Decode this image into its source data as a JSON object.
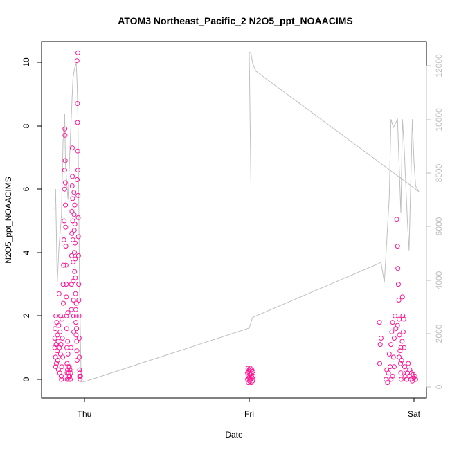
{
  "chart_data": {
    "type": "scatter",
    "title": "ATOM3 Northeast_Pacific_2 N2O5_ppt_NOAACIMS",
    "xlabel": "Date",
    "ylabel": "N2O5_ppt_NOAACIMS",
    "x_ticks": [
      "Thu",
      "Fri",
      "Sat"
    ],
    "y_ticks": [
      "0",
      "2",
      "4",
      "6",
      "8",
      "10"
    ],
    "y2_ticks": [
      "0",
      "2000",
      "4000",
      "6000",
      "8000",
      "10000",
      "12000"
    ],
    "ylim": [
      -0.6,
      10.6
    ],
    "y2lim": [
      -200,
      12500
    ],
    "grid": false,
    "legend": "none",
    "colors": {
      "points": "#ff1493",
      "line": "#bfbfbf",
      "axis": "#000000",
      "right_axis": "#bfbfbf"
    },
    "series": [
      {
        "type": "scatter",
        "axis": "left",
        "points": [
          [
            -0.18,
            1.0
          ],
          [
            -0.18,
            1.3
          ],
          [
            -0.178,
            1.6
          ],
          [
            -0.176,
            0.7
          ],
          [
            -0.175,
            0.4
          ],
          [
            -0.174,
            2.0
          ],
          [
            -0.172,
            1.1
          ],
          [
            -0.17,
            0.5
          ],
          [
            -0.168,
            1.8
          ],
          [
            -0.166,
            0.9
          ],
          [
            -0.164,
            1.4
          ],
          [
            -0.162,
            0.6
          ],
          [
            -0.16,
            1.2
          ],
          [
            -0.158,
            0.3
          ],
          [
            -0.156,
            1.7
          ],
          [
            -0.154,
            2.7
          ],
          [
            -0.152,
            1.0
          ],
          [
            -0.15,
            0.2
          ],
          [
            -0.148,
            1.5
          ],
          [
            -0.146,
            0.8
          ],
          [
            -0.145,
            2.0
          ],
          [
            -0.143,
            1.1
          ],
          [
            -0.141,
            0.1
          ],
          [
            -0.14,
            0.0
          ],
          [
            -0.138,
            0.4
          ],
          [
            -0.136,
            1.9
          ],
          [
            -0.134,
            1.3
          ],
          [
            -0.132,
            0.7
          ],
          [
            -0.13,
            3.0
          ],
          [
            -0.128,
            2.4
          ],
          [
            -0.127,
            3.6
          ],
          [
            -0.125,
            4.4
          ],
          [
            -0.123,
            5.0
          ],
          [
            -0.121,
            6.0
          ],
          [
            -0.12,
            6.6
          ],
          [
            -0.119,
            7.9
          ],
          [
            -0.118,
            7.7
          ],
          [
            -0.117,
            6.9
          ],
          [
            -0.116,
            6.2
          ],
          [
            -0.115,
            5.5
          ],
          [
            -0.114,
            4.8
          ],
          [
            -0.113,
            4.2
          ],
          [
            -0.112,
            3.6
          ],
          [
            -0.111,
            3.0
          ],
          [
            -0.11,
            2.6
          ],
          [
            -0.109,
            2.0
          ],
          [
            -0.108,
            1.6
          ],
          [
            -0.107,
            1.0
          ],
          [
            -0.106,
            0.5
          ],
          [
            -0.105,
            0.2
          ],
          [
            -0.104,
            0.0
          ],
          [
            -0.103,
            0.3
          ],
          [
            -0.102,
            1.2
          ],
          [
            -0.101,
            2.1
          ],
          [
            -0.1,
            0.8
          ],
          [
            -0.099,
            0.4
          ],
          [
            -0.098,
            0.1
          ],
          [
            -0.096,
            0.2
          ],
          [
            -0.094,
            0.0
          ],
          [
            -0.092,
            0.4
          ],
          [
            -0.09,
            0.1
          ],
          [
            -0.088,
            0.3
          ],
          [
            -0.086,
            0.0
          ],
          [
            -0.084,
            0.2
          ],
          [
            -0.082,
            1.0
          ],
          [
            -0.08,
            2.2
          ],
          [
            -0.079,
            3.0
          ],
          [
            -0.078,
            3.9
          ],
          [
            -0.077,
            4.6
          ],
          [
            -0.076,
            5.3
          ],
          [
            -0.075,
            6.1
          ],
          [
            -0.074,
            7.3
          ],
          [
            -0.073,
            6.4
          ],
          [
            -0.072,
            5.7
          ],
          [
            -0.071,
            5.0
          ],
          [
            -0.07,
            4.4
          ],
          [
            -0.069,
            3.7
          ],
          [
            -0.068,
            3.1
          ],
          [
            -0.067,
            2.5
          ],
          [
            -0.066,
            2.0
          ],
          [
            -0.065,
            1.5
          ],
          [
            -0.064,
            5.9
          ],
          [
            -0.063,
            5.2
          ],
          [
            -0.062,
            4.7
          ],
          [
            -0.061,
            4.0
          ],
          [
            -0.06,
            3.4
          ],
          [
            -0.059,
            5.5
          ],
          [
            -0.058,
            4.9
          ],
          [
            -0.057,
            4.3
          ],
          [
            -0.056,
            3.8
          ],
          [
            -0.055,
            3.2
          ],
          [
            -0.054,
            2.7
          ],
          [
            -0.053,
            2.2
          ],
          [
            -0.052,
            1.8
          ],
          [
            -0.051,
            1.4
          ],
          [
            -0.05,
            2.4
          ],
          [
            -0.049,
            2.0
          ],
          [
            -0.048,
            1.6
          ],
          [
            -0.047,
            1.2
          ],
          [
            -0.046,
            0.9
          ],
          [
            -0.045,
            0.6
          ],
          [
            -0.044,
            6.3
          ],
          [
            -0.043,
            8.7
          ],
          [
            -0.042,
            8.1
          ],
          [
            -0.041,
            7.2
          ],
          [
            -0.04,
            6.6
          ],
          [
            -0.039,
            5.8
          ],
          [
            -0.038,
            5.1
          ],
          [
            -0.037,
            4.5
          ],
          [
            -0.036,
            3.9
          ],
          [
            -0.035,
            3.0
          ],
          [
            -0.034,
            2.5
          ],
          [
            -0.033,
            2.0
          ],
          [
            -0.032,
            1.3
          ],
          [
            -0.031,
            0.7
          ],
          [
            -0.03,
            0.3
          ],
          [
            -0.029,
            0.1
          ],
          [
            -0.028,
            0.2
          ],
          [
            -0.026,
            0.0
          ],
          [
            -0.024,
            0.1
          ],
          [
            -0.04,
            10.3
          ],
          [
            -0.045,
            10.05
          ]
        ]
      },
      {
        "type": "scatter",
        "axis": "left",
        "points": [
          [
            0.99,
            0.0
          ],
          [
            0.99,
            0.2
          ],
          [
            0.992,
            0.35
          ],
          [
            0.994,
            0.1
          ],
          [
            0.995,
            -0.1
          ],
          [
            0.996,
            0.25
          ],
          [
            0.998,
            0.05
          ],
          [
            1.0,
            0.3
          ],
          [
            1.002,
            -0.05
          ],
          [
            1.004,
            0.15
          ],
          [
            1.006,
            0.35
          ],
          [
            1.008,
            0.0
          ],
          [
            1.01,
            0.2
          ],
          [
            1.012,
            -0.1
          ],
          [
            1.014,
            0.1
          ],
          [
            1.016,
            0.3
          ],
          [
            1.018,
            0.05
          ],
          [
            1.02,
            -0.05
          ],
          [
            1.022,
            0.25
          ],
          [
            1.024,
            0.1
          ]
        ]
      },
      {
        "type": "scatter",
        "axis": "left",
        "points": [
          [
            1.79,
            1.8
          ],
          [
            1.792,
            0.5
          ],
          [
            1.795,
            1.1
          ],
          [
            1.8,
            1.3
          ],
          [
            1.83,
            0.0
          ],
          [
            1.835,
            0.3
          ],
          [
            1.84,
            -0.1
          ],
          [
            1.845,
            0.2
          ],
          [
            1.85,
            0.8
          ],
          [
            1.855,
            0.4
          ],
          [
            1.86,
            1.1
          ],
          [
            1.865,
            1.5
          ],
          [
            1.87,
            0.1
          ],
          [
            1.875,
            0.7
          ],
          [
            1.88,
            1.3
          ],
          [
            1.885,
            2.0
          ],
          [
            1.89,
            1.6
          ],
          [
            1.895,
            5.05
          ],
          [
            1.9,
            4.2
          ],
          [
            1.902,
            3.5
          ],
          [
            1.905,
            3.0
          ],
          [
            1.908,
            2.5
          ],
          [
            1.91,
            1.9
          ],
          [
            1.912,
            1.4
          ],
          [
            1.915,
            0.9
          ],
          [
            1.918,
            0.5
          ],
          [
            1.92,
            0.2
          ],
          [
            1.922,
            0.0
          ],
          [
            1.925,
            0.6
          ],
          [
            1.928,
            1.2
          ],
          [
            1.93,
            2.6
          ],
          [
            1.932,
            2.0
          ],
          [
            1.935,
            1.5
          ],
          [
            1.938,
            1.9
          ],
          [
            1.94,
            1.0
          ],
          [
            1.943,
            0.4
          ],
          [
            1.946,
            0.1
          ],
          [
            1.95,
            0.3
          ],
          [
            1.955,
            0.0
          ],
          [
            1.96,
            0.2
          ],
          [
            1.965,
            0.5
          ],
          [
            1.97,
            0.1
          ],
          [
            1.975,
            0.3
          ],
          [
            1.98,
            0.0
          ],
          [
            1.985,
            0.2
          ],
          [
            1.99,
            -0.05
          ],
          [
            1.995,
            0.15
          ],
          [
            2.0,
            0.05
          ],
          [
            2.005,
            0.1
          ],
          [
            2.01,
            0.0
          ],
          [
            1.86,
            0.0
          ],
          [
            1.87,
            1.8
          ],
          [
            1.88,
            0.4
          ],
          [
            1.9,
            1.7
          ],
          [
            1.91,
            0.7
          ],
          [
            1.92,
            1.0
          ]
        ]
      }
    ],
    "line_series": {
      "type": "line",
      "axis": "right",
      "points": [
        [
          -0.18,
          6600
        ],
        [
          -0.175,
          7400
        ],
        [
          -0.165,
          3900
        ],
        [
          -0.155,
          5200
        ],
        [
          -0.14,
          6400
        ],
        [
          -0.13,
          9200
        ],
        [
          -0.12,
          10200
        ],
        [
          -0.115,
          8300
        ],
        [
          -0.1,
          7000
        ],
        [
          -0.085,
          9400
        ],
        [
          -0.07,
          11500
        ],
        [
          -0.06,
          11900
        ],
        [
          -0.05,
          12100
        ],
        [
          -0.045,
          11400
        ],
        [
          -0.04,
          10100
        ],
        [
          -0.03,
          3800
        ],
        [
          -0.02,
          200
        ],
        [
          0.0,
          200
        ],
        [
          1.0,
          2200
        ],
        [
          1.02,
          2600
        ],
        [
          1.8,
          4650
        ],
        [
          1.82,
          3900
        ],
        [
          1.85,
          7100
        ],
        [
          1.86,
          10000
        ],
        [
          1.875,
          9700
        ],
        [
          1.9,
          10000
        ],
        [
          1.92,
          6500
        ],
        [
          1.93,
          10000
        ],
        [
          1.94,
          9000
        ],
        [
          1.96,
          6200
        ],
        [
          1.97,
          5100
        ],
        [
          1.99,
          10000
        ],
        [
          2.0,
          8400
        ],
        [
          2.01,
          7500
        ],
        [
          2.02,
          7400
        ],
        [
          2.03,
          7300
        ],
        [
          1.04,
          11800
        ],
        [
          1.02,
          12100
        ],
        [
          1.01,
          12500
        ],
        [
          1.0,
          12500
        ],
        [
          1.01,
          7600
        ]
      ]
    }
  }
}
